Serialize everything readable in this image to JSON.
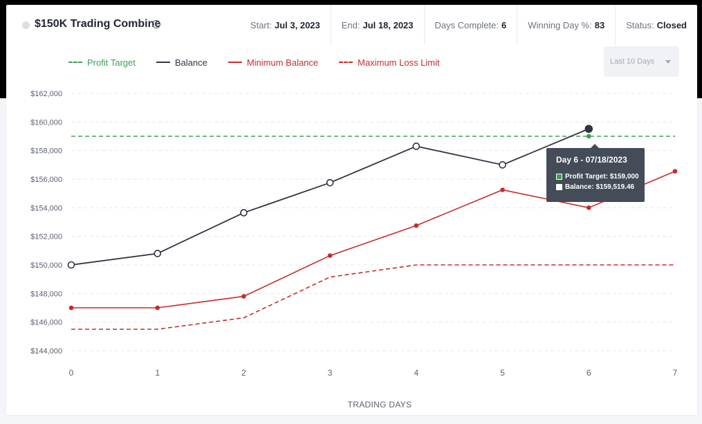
{
  "header": {
    "title": "$150K Trading Combine",
    "status_dot_color": "#dcdee3",
    "stats": [
      {
        "label": "Start:",
        "value": "Jul 3, 2023"
      },
      {
        "label": "End:",
        "value": "Jul 18, 2023"
      },
      {
        "label": "Days Complete:",
        "value": "6"
      },
      {
        "label": "Winning Day %:",
        "value": "83"
      },
      {
        "label": "Status:",
        "value": "Closed"
      }
    ]
  },
  "legend": {
    "profit_target": "Profit Target",
    "balance": "Balance",
    "minimum_balance": "Minimum Balance",
    "maximum_loss_limit": "Maximum Loss Limit"
  },
  "range_select": {
    "value": "Last 10 Days"
  },
  "tooltip": {
    "title": "Day 6 - 07/18/2023",
    "profit_target": "Profit Target: $159,000",
    "balance": "Balance: $159,519.46"
  },
  "chart_data": {
    "type": "line",
    "xlabel": "TRADING DAYS",
    "ylabel": "",
    "x": [
      0,
      1,
      2,
      3,
      4,
      5,
      6,
      7
    ],
    "ylim": [
      144000,
      162000
    ],
    "y_ticks": [
      144000,
      146000,
      148000,
      150000,
      152000,
      154000,
      156000,
      158000,
      160000,
      162000
    ],
    "y_tick_labels": [
      "$144,000",
      "$146,000",
      "$148,000",
      "$150,000",
      "$152,000",
      "$154,000",
      "$156,000",
      "$158,000",
      "$160,000",
      "$162,000"
    ],
    "grid": true,
    "legend_position": "top-left",
    "series": [
      {
        "name": "Profit Target",
        "color": "#3e9f55",
        "style": "dashed",
        "x": [
          0,
          7
        ],
        "values": [
          159000,
          159000
        ]
      },
      {
        "name": "Balance",
        "color": "#2f3642",
        "style": "solid",
        "x": [
          0,
          1,
          2,
          3,
          4,
          5,
          6
        ],
        "values": [
          150000,
          150800,
          153650,
          155750,
          158300,
          157000,
          159519.46
        ]
      },
      {
        "name": "Minimum Balance",
        "color": "#c62b2b",
        "style": "solid",
        "x": [
          0,
          1,
          2,
          3,
          4,
          5,
          6,
          7
        ],
        "values": [
          147000,
          147000,
          147800,
          150650,
          152750,
          155250,
          154000,
          156550
        ]
      },
      {
        "name": "Maximum Loss Limit",
        "color": "#c62b2b",
        "style": "dashed",
        "x": [
          0,
          1,
          2,
          3,
          4,
          5,
          6,
          7
        ],
        "values": [
          145500,
          145500,
          146300,
          149150,
          150000,
          150000,
          150000,
          150000
        ]
      }
    ],
    "highlighted_point": {
      "x": 6,
      "series": "Balance"
    }
  }
}
